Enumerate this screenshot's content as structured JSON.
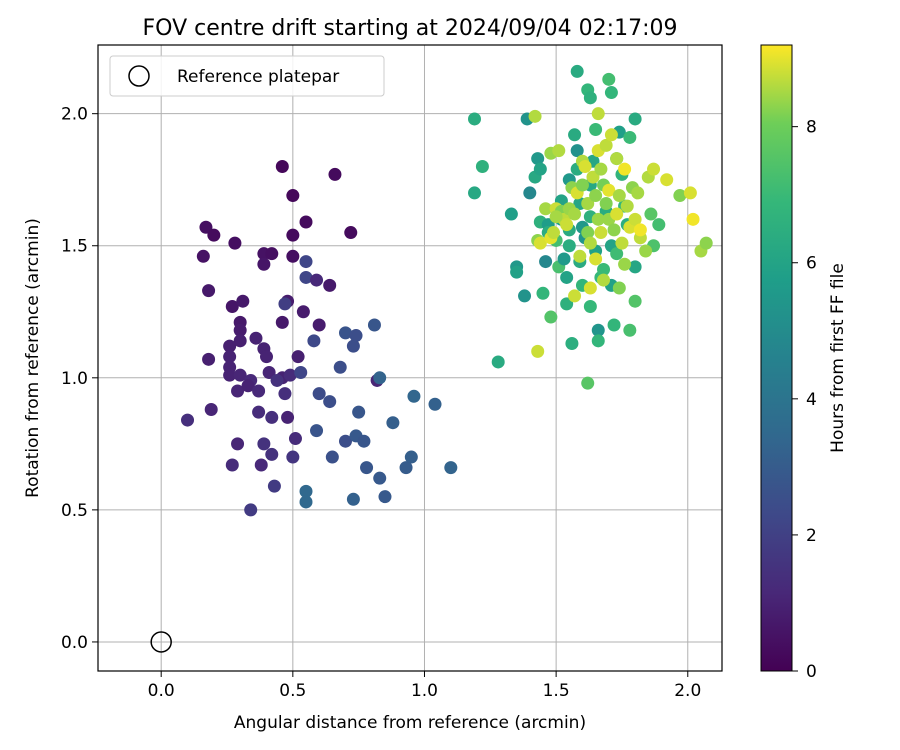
{
  "chart_data": {
    "type": "scatter",
    "title": "FOV centre drift starting at 2024/09/04 02:17:09",
    "xlabel": "Angular distance from reference (arcmin)",
    "ylabel": "Rotation from reference (arcmin)",
    "xlim": [
      -0.24,
      2.13
    ],
    "ylim": [
      -0.11,
      2.26
    ],
    "xticks": [
      "0.0",
      "0.5",
      "1.0",
      "1.5",
      "2.0"
    ],
    "yticks": [
      "0.0",
      "0.5",
      "1.0",
      "1.5",
      "2.0"
    ],
    "grid": true,
    "legend": {
      "position": "top-left",
      "entries": [
        "Reference platepar"
      ]
    },
    "reference_point": {
      "x": 0.0,
      "y": 0.0
    },
    "colorbar": {
      "label": "Hours from first FF file",
      "range": [
        0,
        9.2
      ],
      "ticks": [
        "0",
        "2",
        "4",
        "6",
        "8"
      ],
      "colormap": "viridis"
    },
    "points": [
      [
        0.46,
        1.8,
        0.2
      ],
      [
        0.5,
        1.69,
        0.2
      ],
      [
        0.66,
        1.77,
        0.3
      ],
      [
        0.55,
        1.59,
        0.3
      ],
      [
        0.72,
        1.55,
        0.3
      ],
      [
        0.17,
        1.57,
        0.4
      ],
      [
        0.2,
        1.54,
        0.3
      ],
      [
        0.28,
        1.51,
        0.4
      ],
      [
        0.16,
        1.46,
        0.5
      ],
      [
        0.39,
        1.47,
        0.5
      ],
      [
        0.42,
        1.47,
        0.4
      ],
      [
        0.5,
        1.54,
        0.3
      ],
      [
        0.5,
        1.46,
        0.4
      ],
      [
        0.39,
        1.43,
        0.6
      ],
      [
        0.64,
        1.35,
        0.7
      ],
      [
        0.18,
        1.33,
        0.7
      ],
      [
        0.48,
        1.29,
        0.8
      ],
      [
        0.27,
        1.27,
        0.6
      ],
      [
        0.31,
        1.29,
        0.7
      ],
      [
        0.46,
        1.21,
        0.7
      ],
      [
        0.54,
        1.25,
        0.8
      ],
      [
        0.6,
        1.2,
        0.8
      ],
      [
        0.3,
        1.21,
        0.7
      ],
      [
        0.3,
        1.18,
        0.8
      ],
      [
        0.3,
        1.14,
        0.9
      ],
      [
        0.26,
        1.12,
        0.9
      ],
      [
        0.26,
        1.08,
        1.0
      ],
      [
        0.18,
        1.07,
        0.9
      ],
      [
        0.26,
        1.04,
        1.0
      ],
      [
        0.36,
        1.15,
        1.0
      ],
      [
        0.39,
        1.11,
        1.0
      ],
      [
        0.4,
        1.08,
        1.0
      ],
      [
        0.52,
        1.08,
        0.9
      ],
      [
        0.26,
        1.01,
        1.0
      ],
      [
        0.3,
        1.01,
        1.1
      ],
      [
        0.34,
        0.99,
        1.2
      ],
      [
        0.29,
        0.95,
        1.1
      ],
      [
        0.33,
        0.97,
        1.0
      ],
      [
        0.41,
        1.02,
        1.1
      ],
      [
        0.46,
        1.0,
        1.0
      ],
      [
        0.37,
        0.95,
        1.2
      ],
      [
        0.44,
        0.99,
        1.5
      ],
      [
        0.49,
        1.01,
        1.3
      ],
      [
        0.53,
        1.02,
        2.2
      ],
      [
        0.47,
        0.94,
        1.4
      ],
      [
        0.19,
        0.88,
        1.1
      ],
      [
        0.1,
        0.84,
        1.4
      ],
      [
        0.37,
        0.87,
        1.3
      ],
      [
        0.42,
        0.85,
        1.4
      ],
      [
        0.48,
        0.85,
        1.0
      ],
      [
        0.29,
        0.75,
        1.1
      ],
      [
        0.39,
        0.75,
        1.5
      ],
      [
        0.51,
        0.77,
        1.3
      ],
      [
        0.42,
        0.71,
        1.5
      ],
      [
        0.38,
        0.67,
        1.2
      ],
      [
        0.27,
        0.67,
        1.3
      ],
      [
        0.5,
        0.7,
        1.6
      ],
      [
        0.43,
        0.59,
        1.8
      ],
      [
        0.34,
        0.5,
        1.8
      ],
      [
        0.47,
        1.28,
        1.9
      ],
      [
        0.55,
        1.44,
        2.2
      ],
      [
        0.55,
        1.38,
        2.2
      ],
      [
        0.59,
        1.37,
        1.2
      ],
      [
        0.58,
        1.14,
        2.3
      ],
      [
        0.7,
        1.17,
        2.7
      ],
      [
        0.74,
        1.16,
        2.5
      ],
      [
        0.73,
        1.12,
        2.5
      ],
      [
        0.68,
        1.04,
        2.5
      ],
      [
        0.81,
        1.2,
        2.8
      ],
      [
        0.6,
        0.94,
        2.4
      ],
      [
        0.64,
        0.91,
        2.5
      ],
      [
        0.59,
        0.8,
        2.7
      ],
      [
        0.7,
        0.76,
        2.5
      ],
      [
        0.65,
        0.7,
        2.6
      ],
      [
        0.75,
        0.87,
        2.8
      ],
      [
        0.74,
        0.78,
        2.9
      ],
      [
        0.77,
        0.76,
        2.8
      ],
      [
        0.82,
        0.99,
        1.1
      ],
      [
        0.83,
        1.0,
        3.3
      ],
      [
        0.78,
        0.66,
        2.8
      ],
      [
        0.83,
        0.62,
        2.9
      ],
      [
        0.88,
        0.83,
        3.1
      ],
      [
        0.95,
        0.7,
        3.1
      ],
      [
        0.93,
        0.66,
        3.0
      ],
      [
        0.96,
        0.93,
        3.4
      ],
      [
        1.04,
        0.9,
        3.2
      ],
      [
        1.1,
        0.66,
        3.3
      ],
      [
        0.85,
        0.55,
        2.9
      ],
      [
        0.73,
        0.54,
        3.2
      ],
      [
        0.55,
        0.57,
        3.5
      ],
      [
        0.55,
        0.53,
        3.5
      ],
      [
        1.19,
        1.98,
        6.4
      ],
      [
        1.22,
        1.8,
        6.6
      ],
      [
        1.19,
        1.7,
        6.2
      ],
      [
        1.28,
        1.06,
        6.3
      ],
      [
        1.33,
        1.62,
        5.8
      ],
      [
        1.35,
        1.42,
        5.5
      ],
      [
        1.35,
        1.4,
        5.9
      ],
      [
        1.38,
        1.31,
        5.3
      ],
      [
        1.39,
        1.98,
        5.3
      ],
      [
        1.4,
        1.7,
        4.8
      ],
      [
        1.42,
        1.76,
        6.2
      ],
      [
        1.43,
        1.83,
        5.5
      ],
      [
        1.44,
        1.79,
        6.0
      ],
      [
        1.44,
        1.59,
        6.6
      ],
      [
        1.45,
        1.32,
        6.8
      ],
      [
        1.46,
        1.44,
        4.8
      ],
      [
        1.47,
        1.58,
        5.7
      ],
      [
        1.47,
        1.55,
        6.4
      ],
      [
        1.48,
        1.23,
        7.5
      ],
      [
        1.5,
        1.52,
        7.2
      ],
      [
        1.51,
        1.42,
        7.3
      ],
      [
        1.52,
        1.67,
        6.0
      ],
      [
        1.52,
        1.6,
        5.8
      ],
      [
        1.53,
        1.45,
        5.6
      ],
      [
        1.54,
        1.38,
        6.0
      ],
      [
        1.54,
        1.28,
        6.6
      ],
      [
        1.55,
        1.75,
        5.5
      ],
      [
        1.55,
        1.56,
        6.3
      ],
      [
        1.55,
        1.5,
        6.4
      ],
      [
        1.56,
        1.13,
        6.5
      ],
      [
        1.57,
        1.92,
        6.3
      ],
      [
        1.58,
        1.86,
        5.2
      ],
      [
        1.58,
        1.79,
        6.4
      ],
      [
        1.58,
        2.16,
        6.3
      ],
      [
        1.59,
        1.66,
        6.1
      ],
      [
        1.59,
        1.44,
        6.3
      ],
      [
        1.6,
        1.57,
        5.5
      ],
      [
        1.6,
        1.35,
        6.8
      ],
      [
        1.61,
        1.53,
        5.4
      ],
      [
        1.62,
        2.09,
        6.8
      ],
      [
        1.62,
        0.98,
        7.6
      ],
      [
        1.63,
        2.06,
        6.6
      ],
      [
        1.63,
        1.73,
        6.2
      ],
      [
        1.63,
        1.61,
        6.6
      ],
      [
        1.63,
        1.27,
        6.9
      ],
      [
        1.64,
        1.82,
        6.1
      ],
      [
        1.65,
        1.94,
        7.0
      ],
      [
        1.65,
        1.48,
        5.9
      ],
      [
        1.66,
        1.18,
        5.4
      ],
      [
        1.66,
        1.14,
        6.8
      ],
      [
        1.67,
        1.38,
        6.9
      ],
      [
        1.68,
        1.41,
        7.0
      ],
      [
        1.69,
        1.63,
        6.4
      ],
      [
        1.7,
        2.13,
        7.2
      ],
      [
        1.71,
        2.08,
        6.8
      ],
      [
        1.71,
        1.5,
        6.0
      ],
      [
        1.71,
        1.35,
        5.9
      ],
      [
        1.72,
        1.2,
        6.8
      ],
      [
        1.73,
        1.83,
        6.8
      ],
      [
        1.73,
        1.47,
        7.1
      ],
      [
        1.74,
        1.93,
        5.8
      ],
      [
        1.75,
        1.77,
        6.7
      ],
      [
        1.76,
        1.65,
        6.9
      ],
      [
        1.77,
        1.58,
        6.5
      ],
      [
        1.78,
        1.18,
        7.3
      ],
      [
        1.78,
        1.91,
        7.0
      ],
      [
        1.8,
        1.98,
        6.3
      ],
      [
        1.8,
        1.42,
        6.1
      ],
      [
        1.8,
        1.29,
        7.5
      ],
      [
        1.86,
        1.62,
        7.6
      ],
      [
        1.87,
        1.5,
        7.4
      ],
      [
        1.89,
        1.58,
        7.2
      ],
      [
        1.42,
        1.99,
        8.6
      ],
      [
        1.43,
        1.52,
        8.3
      ],
      [
        1.43,
        1.1,
        8.8
      ],
      [
        1.44,
        1.51,
        8.9
      ],
      [
        1.46,
        1.64,
        8.5
      ],
      [
        1.48,
        1.53,
        9.0
      ],
      [
        1.48,
        1.85,
        8.4
      ],
      [
        1.49,
        1.55,
        8.7
      ],
      [
        1.5,
        1.64,
        8.8
      ],
      [
        1.51,
        1.86,
        8.6
      ],
      [
        1.52,
        1.63,
        8.2
      ],
      [
        1.53,
        1.6,
        8.7
      ],
      [
        1.54,
        1.58,
        8.8
      ],
      [
        1.55,
        1.64,
        8.4
      ],
      [
        1.56,
        1.72,
        8.3
      ],
      [
        1.57,
        1.62,
        8.5
      ],
      [
        1.58,
        1.7,
        8.9
      ],
      [
        1.59,
        1.46,
        8.7
      ],
      [
        1.6,
        1.82,
        8.6
      ],
      [
        1.6,
        1.73,
        8.2
      ],
      [
        1.61,
        1.8,
        8.9
      ],
      [
        1.62,
        1.66,
        8.5
      ],
      [
        1.62,
        1.55,
        8.2
      ],
      [
        1.63,
        1.51,
        8.6
      ],
      [
        1.64,
        1.76,
        8.7
      ],
      [
        1.65,
        1.69,
        8.3
      ],
      [
        1.65,
        1.45,
        8.9
      ],
      [
        1.66,
        1.6,
        8.4
      ],
      [
        1.66,
        1.86,
        8.9
      ],
      [
        1.67,
        1.79,
        8.5
      ],
      [
        1.67,
        1.55,
        8.8
      ],
      [
        1.68,
        1.73,
        8.1
      ],
      [
        1.68,
        1.37,
        8.6
      ],
      [
        1.69,
        1.88,
        8.7
      ],
      [
        1.69,
        1.66,
        8.2
      ],
      [
        1.7,
        1.71,
        9.0
      ],
      [
        1.7,
        1.6,
        8.4
      ],
      [
        1.71,
        1.92,
        8.8
      ],
      [
        1.72,
        1.56,
        8.3
      ],
      [
        1.73,
        1.83,
        8.6
      ],
      [
        1.73,
        1.62,
        8.9
      ],
      [
        1.74,
        1.69,
        8.5
      ],
      [
        1.74,
        1.34,
        8.2
      ],
      [
        1.75,
        1.51,
        8.7
      ],
      [
        1.76,
        1.79,
        9.1
      ],
      [
        1.76,
        1.43,
        8.4
      ],
      [
        1.77,
        1.65,
        8.6
      ],
      [
        1.78,
        1.57,
        8.9
      ],
      [
        1.79,
        1.72,
        8.3
      ],
      [
        1.8,
        1.6,
        8.8
      ],
      [
        1.81,
        1.7,
        8.5
      ],
      [
        1.82,
        1.53,
        8.7
      ],
      [
        1.84,
        1.48,
        8.4
      ],
      [
        1.85,
        1.76,
        8.6
      ],
      [
        1.87,
        1.79,
        8.8
      ],
      [
        1.92,
        1.75,
        8.9
      ],
      [
        1.82,
        1.56,
        9.1
      ],
      [
        1.97,
        1.69,
        8.2
      ],
      [
        2.01,
        1.7,
        8.9
      ],
      [
        2.02,
        1.6,
        9.1
      ],
      [
        2.05,
        1.48,
        8.5
      ],
      [
        2.07,
        1.51,
        8.3
      ],
      [
        1.66,
        2.0,
        8.7
      ],
      [
        1.63,
        1.34,
        8.9
      ],
      [
        1.57,
        1.31,
        8.8
      ],
      [
        1.5,
        1.61,
        8.5
      ]
    ]
  }
}
